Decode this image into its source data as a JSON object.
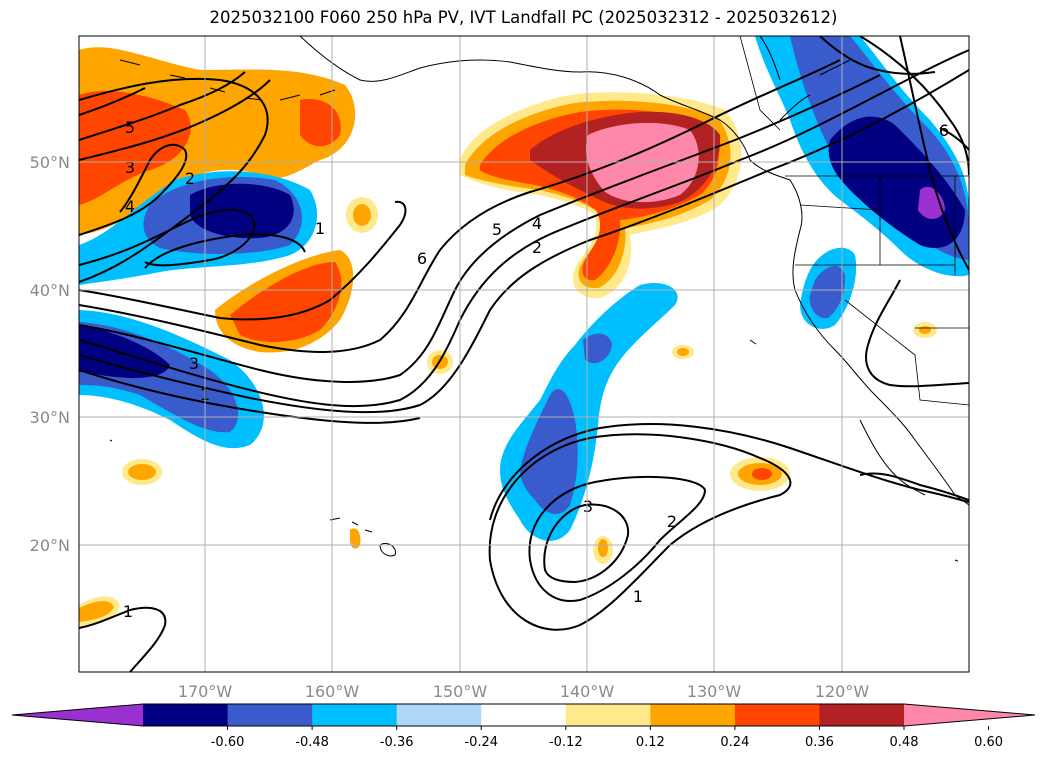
{
  "title": "2025032100 F060 250 hPa PV, IVT Landfall PC (2025032312 - 2025032612)",
  "map": {
    "lat_labels": [
      "50°N",
      "40°N",
      "30°N",
      "20°N"
    ],
    "lon_labels": [
      "170°W",
      "160°W",
      "150°W",
      "140°W",
      "130°W",
      "120°W"
    ],
    "contour_labels": [
      "5",
      "3",
      "4",
      "2",
      "1",
      "6",
      "5",
      "4",
      "2",
      "3",
      "1",
      "3",
      "2",
      "1",
      "1",
      "6"
    ]
  },
  "colorbar": {
    "tick_labels": [
      "-0.60",
      "-0.48",
      "-0.36",
      "-0.24",
      "-0.12",
      "0.12",
      "0.24",
      "0.36",
      "0.48",
      "0.60"
    ],
    "colors": [
      "#9b30d0",
      "#000080",
      "#3a5bcc",
      "#00bfff",
      "#add8f7",
      "#ffffff",
      "#ffe98a",
      "#ffa500",
      "#ff4500",
      "#b22222",
      "#ff88aa"
    ]
  }
}
